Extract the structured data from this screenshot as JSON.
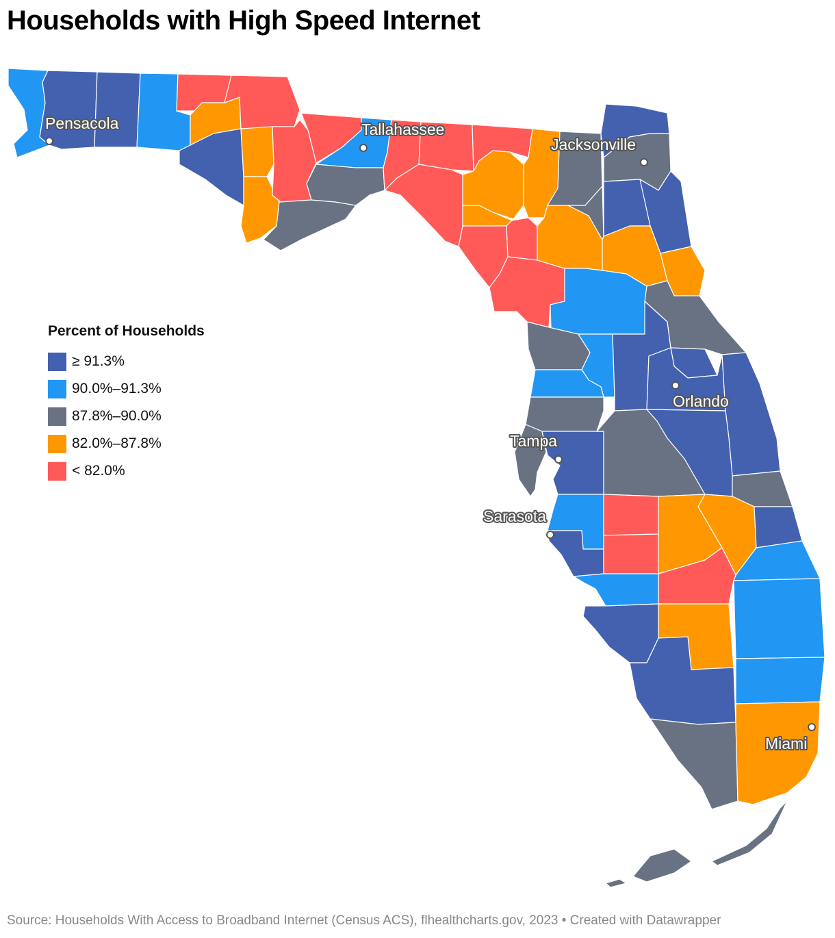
{
  "title": "Households with High Speed Internet",
  "legend": {
    "title": "Percent of Households",
    "items": [
      {
        "label": "≥ 91.3%",
        "color": "#4361ae"
      },
      {
        "label": "90.0%–91.3%",
        "color": "#2196f3"
      },
      {
        "label": "87.8%–90.0%",
        "color": "#687283"
      },
      {
        "label": "82.0%–87.8%",
        "color": "#ff9800"
      },
      {
        "label": "< 82.0%",
        "color": "#ff5a57"
      }
    ]
  },
  "cities": {
    "pensacola": "Pensacola",
    "tallahassee": "Tallahassee",
    "jacksonville": "Jacksonville",
    "orlando": "Orlando",
    "tampa": "Tampa",
    "sarasota": "Sarasota",
    "miami": "Miami"
  },
  "source": "Source: Households With Access to Broadband Internet (Census ACS), flhealthcharts.gov, 2023 • Created with Datawrapper"
}
